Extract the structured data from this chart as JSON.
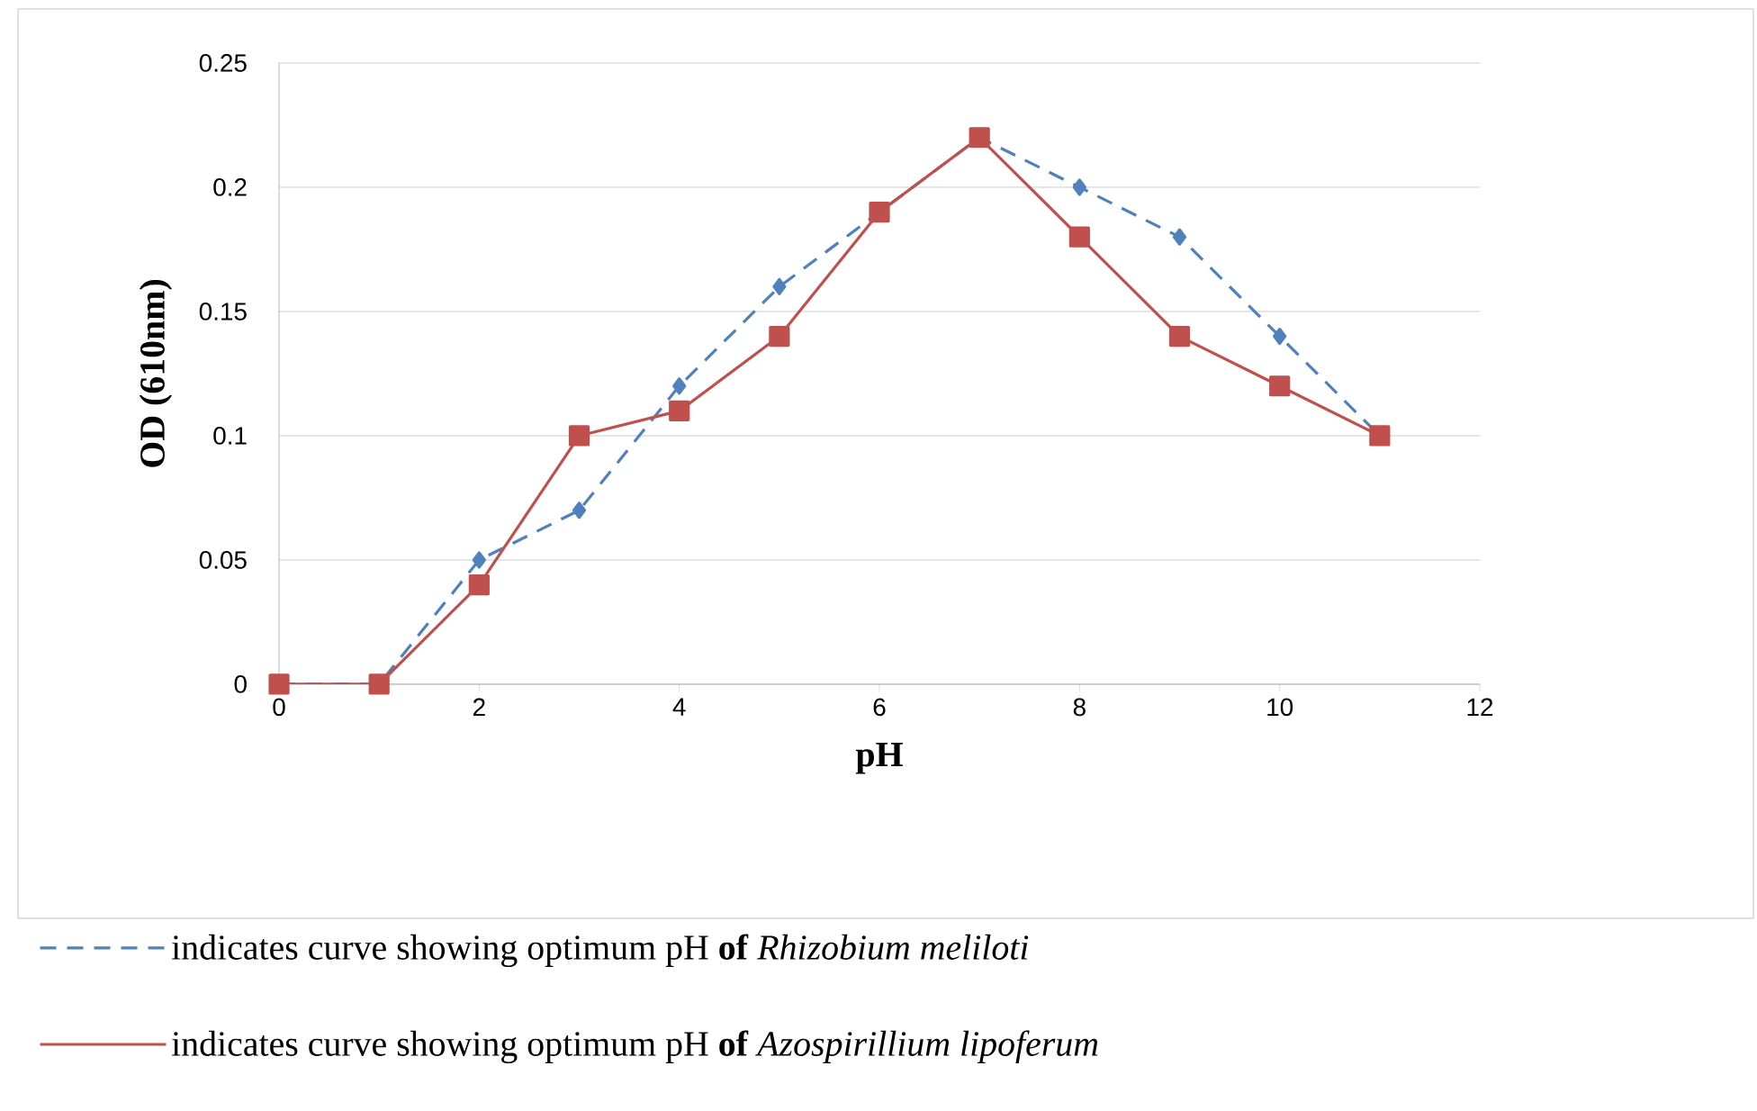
{
  "chart_data": {
    "type": "line",
    "xlabel": "pH",
    "ylabel": "OD (610nm)",
    "xlim": [
      0,
      12
    ],
    "xticks": [
      0,
      2,
      4,
      6,
      8,
      10,
      12
    ],
    "ylim": [
      0,
      0.25
    ],
    "yticks": [
      0,
      0.05,
      0.1,
      0.15,
      0.2,
      0.25
    ],
    "grid": "y",
    "legend": "bottom",
    "series": [
      {
        "name": "indicates curve showing optimum pH **of** *Rhizobium meliloti*",
        "color": "#4f81bd",
        "marker": "diamond",
        "line_style": "dashed",
        "x": [
          0,
          1,
          2,
          3,
          4,
          5,
          6,
          7,
          8,
          9,
          10,
          11
        ],
        "values": [
          0,
          0,
          0.05,
          0.07,
          0.12,
          0.16,
          0.19,
          0.22,
          0.2,
          0.18,
          0.14,
          0.1
        ]
      },
      {
        "name": "indicates curve showing optimum pH **of** *Azospirillium lipoferum*",
        "color": "#c0504d",
        "marker": "square",
        "line_style": "solid",
        "x": [
          0,
          1,
          2,
          3,
          4,
          5,
          6,
          7,
          8,
          9,
          10,
          11
        ],
        "values": [
          0,
          0,
          0.04,
          0.1,
          0.11,
          0.14,
          0.19,
          0.22,
          0.18,
          0.14,
          0.12,
          0.1
        ]
      }
    ]
  }
}
